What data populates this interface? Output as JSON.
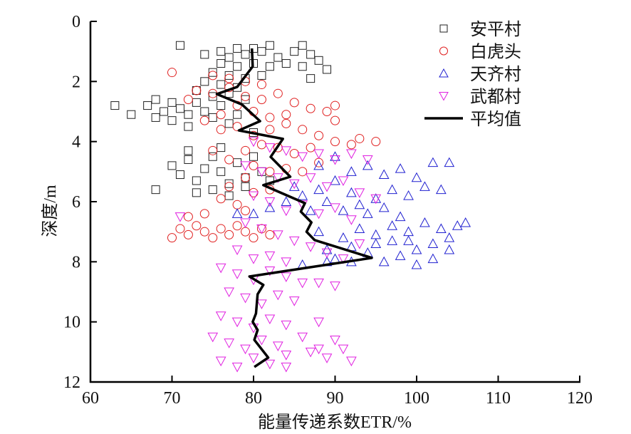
{
  "chart_data": {
    "type": "scatter",
    "title": "",
    "xlabel": "能量传递系数ETR/%",
    "ylabel": "深度/m",
    "xlim": [
      60,
      120
    ],
    "ylim": [
      0,
      12
    ],
    "y_inverted": true,
    "x_ticks": [
      "60",
      "70",
      "80",
      "90",
      "100",
      "110",
      "120"
    ],
    "y_ticks": [
      "0",
      "2",
      "4",
      "6",
      "8",
      "10",
      "12"
    ],
    "grid": false,
    "legend_position": "top-right",
    "series": [
      {
        "name": "安平村",
        "marker": "square",
        "color": "#222222",
        "points": [
          [
            71,
            0.8
          ],
          [
            78,
            0.9
          ],
          [
            80,
            0.9
          ],
          [
            82,
            0.8
          ],
          [
            86,
            0.8
          ],
          [
            76,
            1.0
          ],
          [
            74,
            1.1
          ],
          [
            77,
            1.2
          ],
          [
            79,
            1.1
          ],
          [
            81,
            1.0
          ],
          [
            83,
            1.2
          ],
          [
            85,
            1.0
          ],
          [
            87,
            1.1
          ],
          [
            84,
            1.4
          ],
          [
            82,
            1.5
          ],
          [
            80,
            1.4
          ],
          [
            78,
            1.5
          ],
          [
            76,
            1.4
          ],
          [
            75,
            1.7
          ],
          [
            77,
            1.8
          ],
          [
            79,
            1.9
          ],
          [
            81,
            1.8
          ],
          [
            86,
            1.5
          ],
          [
            88,
            1.3
          ],
          [
            89,
            1.6
          ],
          [
            87,
            1.9
          ],
          [
            74,
            2.0
          ],
          [
            76,
            2.1
          ],
          [
            78,
            2.2
          ],
          [
            73,
            2.3
          ],
          [
            75,
            2.5
          ],
          [
            77,
            2.4
          ],
          [
            79,
            2.6
          ],
          [
            63,
            2.8
          ],
          [
            65,
            3.1
          ],
          [
            67,
            2.8
          ],
          [
            68,
            2.6
          ],
          [
            69,
            3.0
          ],
          [
            70,
            2.7
          ],
          [
            71,
            2.9
          ],
          [
            72,
            3.1
          ],
          [
            73,
            2.7
          ],
          [
            74,
            3.0
          ],
          [
            75,
            3.2
          ],
          [
            76,
            2.8
          ],
          [
            70,
            3.3
          ],
          [
            72,
            3.5
          ],
          [
            68,
            3.2
          ],
          [
            78,
            3.1
          ],
          [
            77,
            3.4
          ],
          [
            80,
            3.7
          ],
          [
            70,
            4.8
          ],
          [
            68,
            5.6
          ],
          [
            71,
            5.1
          ],
          [
            72,
            4.6
          ],
          [
            73,
            5.3
          ],
          [
            74,
            4.9
          ],
          [
            75,
            4.5
          ],
          [
            76,
            5.0
          ],
          [
            77,
            5.4
          ],
          [
            78,
            4.7
          ],
          [
            79,
            5.2
          ],
          [
            80,
            4.5
          ],
          [
            81,
            5.0
          ],
          [
            82,
            5.3
          ],
          [
            73,
            5.7
          ],
          [
            75,
            5.6
          ],
          [
            77,
            5.8
          ],
          [
            79,
            5.5
          ],
          [
            72,
            4.3
          ],
          [
            76,
            4.2
          ]
        ]
      },
      {
        "name": "白虎头",
        "marker": "circle",
        "color": "#e02020",
        "points": [
          [
            70,
            1.7
          ],
          [
            75,
            1.8
          ],
          [
            77,
            1.9
          ],
          [
            79,
            2.0
          ],
          [
            81,
            2.1
          ],
          [
            73,
            2.3
          ],
          [
            75,
            2.4
          ],
          [
            77,
            2.2
          ],
          [
            79,
            2.5
          ],
          [
            81,
            2.6
          ],
          [
            83,
            2.4
          ],
          [
            85,
            2.7
          ],
          [
            87,
            2.9
          ],
          [
            89,
            3.0
          ],
          [
            90,
            2.8
          ],
          [
            90,
            3.3
          ],
          [
            84,
            3.1
          ],
          [
            82,
            3.2
          ],
          [
            80,
            3.0
          ],
          [
            78,
            2.8
          ],
          [
            76,
            3.1
          ],
          [
            74,
            3.3
          ],
          [
            72,
            2.6
          ],
          [
            76,
            3.6
          ],
          [
            78,
            3.5
          ],
          [
            80,
            3.8
          ],
          [
            82,
            3.6
          ],
          [
            84,
            3.4
          ],
          [
            86,
            3.6
          ],
          [
            88,
            3.8
          ],
          [
            90,
            4.0
          ],
          [
            93,
            3.9
          ],
          [
            95,
            4.0
          ],
          [
            92,
            4.1
          ],
          [
            87,
            4.2
          ],
          [
            85,
            4.4
          ],
          [
            83,
            4.2
          ],
          [
            81,
            4.1
          ],
          [
            79,
            4.3
          ],
          [
            75,
            4.3
          ],
          [
            77,
            4.6
          ],
          [
            80,
            4.8
          ],
          [
            82,
            5.0
          ],
          [
            84,
            4.9
          ],
          [
            86,
            5.0
          ],
          [
            88,
            4.7
          ],
          [
            79,
            5.2
          ],
          [
            77,
            5.5
          ],
          [
            76,
            5.9
          ],
          [
            78,
            6.1
          ],
          [
            80,
            5.7
          ],
          [
            82,
            5.6
          ],
          [
            79,
            6.3
          ],
          [
            70,
            7.2
          ],
          [
            71,
            6.9
          ],
          [
            72,
            7.1
          ],
          [
            73,
            6.8
          ],
          [
            74,
            7.0
          ],
          [
            75,
            7.2
          ],
          [
            76,
            6.9
          ],
          [
            77,
            7.1
          ],
          [
            78,
            6.8
          ],
          [
            79,
            7.0
          ],
          [
            80,
            7.2
          ],
          [
            81,
            6.9
          ],
          [
            82,
            7.1
          ],
          [
            72,
            6.5
          ],
          [
            74,
            6.4
          ]
        ]
      },
      {
        "name": "天齐村",
        "marker": "triangle-up",
        "color": "#2020d0",
        "points": [
          [
            80,
            6.4
          ],
          [
            82,
            6.2
          ],
          [
            84,
            6.0
          ],
          [
            86,
            5.8
          ],
          [
            88,
            5.6
          ],
          [
            90,
            5.3
          ],
          [
            92,
            5.0
          ],
          [
            94,
            4.8
          ],
          [
            96,
            5.1
          ],
          [
            98,
            4.9
          ],
          [
            100,
            5.2
          ],
          [
            102,
            4.7
          ],
          [
            104,
            4.7
          ],
          [
            103,
            5.6
          ],
          [
            101,
            5.5
          ],
          [
            99,
            5.8
          ],
          [
            97,
            5.6
          ],
          [
            95,
            5.9
          ],
          [
            93,
            6.1
          ],
          [
            91,
            6.3
          ],
          [
            89,
            6.0
          ],
          [
            87,
            6.3
          ],
          [
            85,
            5.5
          ],
          [
            88,
            4.8
          ],
          [
            90,
            4.5
          ],
          [
            92,
            5.7
          ],
          [
            94,
            6.4
          ],
          [
            96,
            6.2
          ],
          [
            98,
            6.5
          ],
          [
            78,
            6.4
          ],
          [
            89,
            7.6
          ],
          [
            91,
            7.2
          ],
          [
            93,
            6.9
          ],
          [
            95,
            7.1
          ],
          [
            97,
            6.8
          ],
          [
            99,
            7.0
          ],
          [
            101,
            6.7
          ],
          [
            103,
            6.9
          ],
          [
            105,
            6.8
          ],
          [
            106,
            6.7
          ],
          [
            104,
            7.2
          ],
          [
            102,
            7.4
          ],
          [
            100,
            7.6
          ],
          [
            98,
            7.8
          ],
          [
            96,
            8.0
          ],
          [
            94,
            7.7
          ],
          [
            92,
            7.5
          ],
          [
            90,
            7.9
          ],
          [
            92,
            8.0
          ],
          [
            97,
            7.3
          ],
          [
            100,
            8.1
          ],
          [
            102,
            7.9
          ],
          [
            104,
            7.6
          ],
          [
            95,
            7.4
          ],
          [
            99,
            7.3
          ],
          [
            88,
            7.0
          ],
          [
            86,
            8.1
          ],
          [
            89,
            8.0
          ]
        ]
      },
      {
        "name": "武都村",
        "marker": "triangle-down",
        "color": "#e020e0",
        "points": [
          [
            80,
            4.0
          ],
          [
            82,
            4.2
          ],
          [
            84,
            4.3
          ],
          [
            86,
            4.5
          ],
          [
            88,
            4.4
          ],
          [
            90,
            4.6
          ],
          [
            92,
            4.4
          ],
          [
            94,
            4.6
          ],
          [
            79,
            4.8
          ],
          [
            81,
            5.0
          ],
          [
            83,
            5.2
          ],
          [
            85,
            5.4
          ],
          [
            87,
            5.2
          ],
          [
            89,
            5.5
          ],
          [
            91,
            5.3
          ],
          [
            93,
            5.7
          ],
          [
            95,
            5.9
          ],
          [
            80,
            5.8
          ],
          [
            82,
            6.0
          ],
          [
            84,
            6.3
          ],
          [
            86,
            6.1
          ],
          [
            88,
            6.4
          ],
          [
            90,
            6.2
          ],
          [
            92,
            6.6
          ],
          [
            71,
            6.5
          ],
          [
            79,
            6.7
          ],
          [
            81,
            6.9
          ],
          [
            83,
            7.1
          ],
          [
            85,
            7.3
          ],
          [
            87,
            7.5
          ],
          [
            89,
            7.7
          ],
          [
            91,
            7.9
          ],
          [
            93,
            7.4
          ],
          [
            78,
            7.6
          ],
          [
            80,
            7.9
          ],
          [
            82,
            7.8
          ],
          [
            84,
            8.0
          ],
          [
            76,
            8.2
          ],
          [
            78,
            8.4
          ],
          [
            80,
            8.6
          ],
          [
            82,
            8.3
          ],
          [
            84,
            8.5
          ],
          [
            86,
            8.7
          ],
          [
            88,
            8.7
          ],
          [
            90,
            8.8
          ],
          [
            77,
            9.0
          ],
          [
            79,
            9.2
          ],
          [
            81,
            9.4
          ],
          [
            83,
            9.1
          ],
          [
            85,
            9.3
          ],
          [
            76,
            9.8
          ],
          [
            78,
            10.0
          ],
          [
            80,
            10.2
          ],
          [
            82,
            9.9
          ],
          [
            84,
            10.1
          ],
          [
            88,
            10.0
          ],
          [
            75,
            10.5
          ],
          [
            77,
            10.7
          ],
          [
            79,
            10.9
          ],
          [
            81,
            10.6
          ],
          [
            83,
            10.8
          ],
          [
            86,
            10.5
          ],
          [
            88,
            10.9
          ],
          [
            90,
            10.6
          ],
          [
            91,
            10.9
          ],
          [
            76,
            11.3
          ],
          [
            78,
            11.5
          ],
          [
            80,
            11.2
          ],
          [
            82,
            11.4
          ],
          [
            84,
            11.1
          ],
          [
            87,
            11.0
          ],
          [
            89,
            11.2
          ],
          [
            92,
            11.3
          ],
          [
            84,
            11.5
          ]
        ]
      },
      {
        "name": "平均值",
        "marker": "line",
        "color": "#000000",
        "points": [
          [
            79.8,
            0.9
          ],
          [
            79.9,
            1.5
          ],
          [
            78.0,
            2.18
          ],
          [
            75.5,
            2.42
          ],
          [
            78.6,
            2.77
          ],
          [
            80.8,
            3.32
          ],
          [
            78.2,
            3.63
          ],
          [
            83.6,
            3.91
          ],
          [
            82.1,
            4.51
          ],
          [
            84.5,
            5.17
          ],
          [
            81.2,
            5.45
          ],
          [
            86.3,
            6.05
          ],
          [
            85.8,
            6.33
          ],
          [
            87.1,
            6.69
          ],
          [
            86.5,
            7.0
          ],
          [
            87.5,
            7.28
          ],
          [
            94.5,
            7.87
          ],
          [
            79.5,
            8.49
          ],
          [
            81.2,
            8.77
          ],
          [
            80.5,
            9.08
          ],
          [
            80.3,
            9.72
          ],
          [
            79.9,
            10.0
          ],
          [
            80.5,
            10.27
          ],
          [
            80.1,
            10.6
          ],
          [
            81.8,
            11.19
          ],
          [
            80.1,
            11.5
          ]
        ]
      }
    ]
  }
}
